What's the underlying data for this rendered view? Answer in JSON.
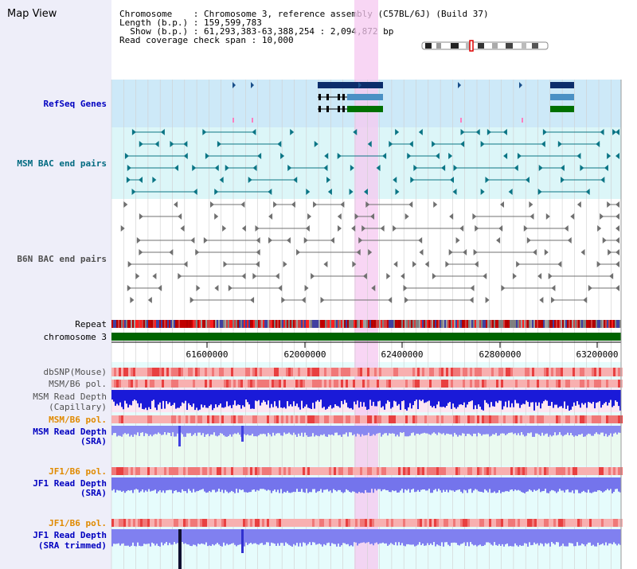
{
  "app_title": "Map View",
  "info": {
    "chromosome_key": "Chromosome",
    "chromosome_val": "Chromosome 3, reference assembly (C57BL/6J) (Build 37)",
    "length_key": "Length (b.p.)",
    "length_val": "159,599,783",
    "show_key": "Show (b.p.)",
    "show_val": "61,293,383-63,388,254 : 2,094,872 bp",
    "coverage_key": "Read coverage check span",
    "coverage_val": "10,000"
  },
  "tracks": {
    "refseq": "RefSeq Genes",
    "msm_bac": "MSM BAC end pairs",
    "b6n_bac": "B6N BAC end pairs",
    "repeat": "Repeat",
    "chromosome": "chromosome 3",
    "dbsnp": "dbSNP(Mouse)",
    "msm_b6_pol_1": "MSM/B6 pol.",
    "msm_read_depth_cap_1": "MSM Read Depth",
    "msm_read_depth_cap_2": "(Capillary)",
    "msm_b6_pol_2": "MSM/B6 pol.",
    "msm_read_depth_sra_1": "MSM Read Depth",
    "msm_read_depth_sra_2": "(SRA)",
    "jf1_b6_pol_1": "JF1/B6 pol.",
    "jf1_read_depth_sra_1": "JF1 Read Depth",
    "jf1_read_depth_sra_2": "(SRA)",
    "jf1_b6_pol_2": "JF1/B6 pol.",
    "jf1_read_depth_trim_1": "JF1 Read Depth",
    "jf1_read_depth_trim_2": "(SRA trimmed)"
  },
  "axis": {
    "ticks": [
      "61600000",
      "62000000",
      "62400000",
      "62800000",
      "63200000"
    ]
  },
  "colors": {
    "label_blue": "#0000c0",
    "label_teal": "#006a80",
    "label_gray": "#505050",
    "label_orange": "#e08a00",
    "highlight": "#f5c8f0",
    "chromosome_bar": "#006400"
  }
}
